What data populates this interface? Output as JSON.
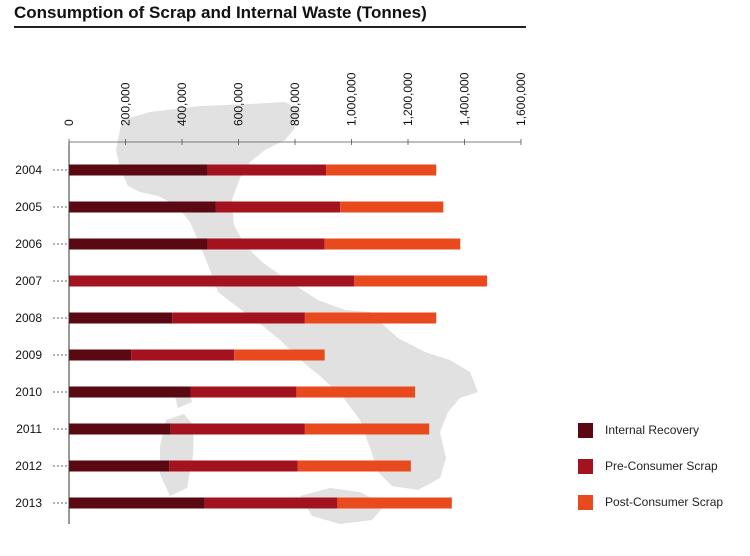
{
  "title": "Consumption of Scrap and Internal Waste (Tonnes)",
  "chart_data": {
    "type": "bar",
    "orientation": "horizontal",
    "stacked": true,
    "categories": [
      "2004",
      "2005",
      "2006",
      "2007",
      "2008",
      "2009",
      "2010",
      "2011",
      "2012",
      "2013"
    ],
    "series": [
      {
        "name": "Internal Recovery",
        "color": "#5a0812",
        "values": [
          490000,
          520000,
          490000,
          0,
          365000,
          220000,
          430000,
          360000,
          355000,
          480000
        ]
      },
      {
        "name": "Pre-Consumer Scrap",
        "color": "#a3121f",
        "values": [
          420000,
          440000,
          415000,
          1010000,
          470000,
          365000,
          375000,
          475000,
          455000,
          470000
        ]
      },
      {
        "name": "Post-Consumer Scrap",
        "color": "#e84a1e",
        "values": [
          390000,
          365000,
          480000,
          470000,
          465000,
          320000,
          420000,
          440000,
          400000,
          405000
        ]
      }
    ],
    "xticks": [
      "0",
      "200,000",
      "400,000",
      "600,000",
      "800,000",
      "1,000,000",
      "1,200,000",
      "1,400,000",
      "1,600,000"
    ],
    "xlim": [
      0,
      1600000
    ],
    "legend_position": "right",
    "grid": false,
    "background_image": "italy-map-silhouette"
  }
}
